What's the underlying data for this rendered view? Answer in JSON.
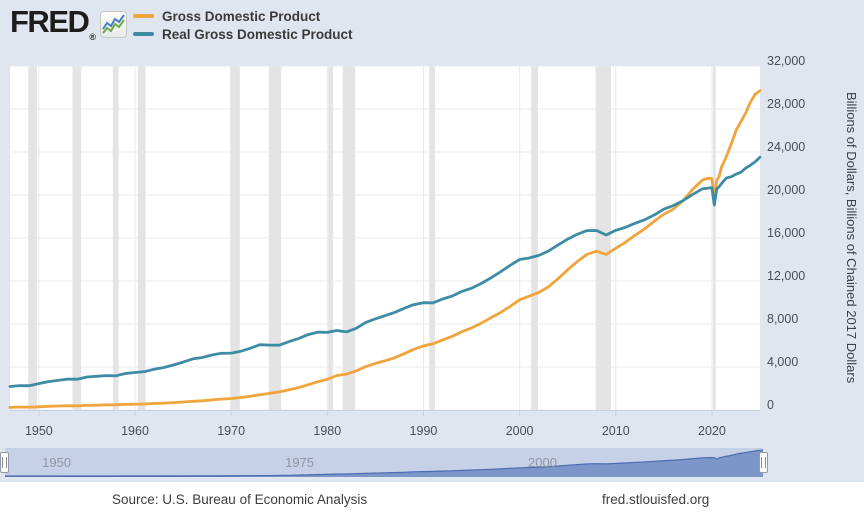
{
  "header": {
    "logo": "FRED",
    "registered": "®"
  },
  "footer": {
    "source": "Source: U.S. Bureau of Economic Analysis",
    "site": "fred.stlouisfed.org"
  },
  "colors": {
    "gdp_orange": "#F0A43C",
    "real_gdp_teal": "#3E8CA4",
    "page_bg": "#E0E6EF",
    "plot_bg": "#FFFFFF",
    "recession_band": "#E4E4E4",
    "gridline": "#EBEBEB",
    "axis_line": "#C9D2DE",
    "nav_track": "#C6D0E6",
    "nav_fill": "#7D96C9",
    "nav_line": "#4C6DB2"
  },
  "chart_data": {
    "type": "line",
    "title": "",
    "ylabel": "Billions of Dollars, Billions of Chained 2017 Dollars",
    "xlim": [
      1947,
      2025
    ],
    "ylim": [
      0,
      32000
    ],
    "x_ticks": [
      1950,
      1960,
      1970,
      1980,
      1990,
      2000,
      2010,
      2020
    ],
    "y_ticks": [
      0,
      4000,
      8000,
      12000,
      16000,
      20000,
      24000,
      28000,
      32000
    ],
    "y_tick_labels": [
      "0",
      "4,000",
      "8,000",
      "12,000",
      "16,000",
      "20,000",
      "24,000",
      "28,000",
      "32,000"
    ],
    "grid": true,
    "legend_position": "top-left",
    "recession_bands": [
      [
        1948.9,
        1949.8
      ],
      [
        1953.5,
        1954.4
      ],
      [
        1957.7,
        1958.3
      ],
      [
        1960.3,
        1961.1
      ],
      [
        1969.9,
        1970.9
      ],
      [
        1973.9,
        1975.2
      ],
      [
        1980.1,
        1980.6
      ],
      [
        1981.6,
        1982.9
      ],
      [
        1990.6,
        1991.2
      ],
      [
        2001.2,
        2001.9
      ],
      [
        2007.9,
        2009.5
      ],
      [
        2020.1,
        2020.4
      ]
    ],
    "x": [
      1947,
      1948,
      1949,
      1950,
      1951,
      1952,
      1953,
      1954,
      1955,
      1956,
      1957,
      1958,
      1959,
      1960,
      1961,
      1962,
      1963,
      1964,
      1965,
      1966,
      1967,
      1968,
      1969,
      1970,
      1971,
      1972,
      1973,
      1974,
      1975,
      1976,
      1977,
      1978,
      1979,
      1980,
      1981,
      1982,
      1983,
      1984,
      1985,
      1986,
      1987,
      1988,
      1989,
      1990,
      1991,
      1992,
      1993,
      1994,
      1995,
      1996,
      1997,
      1998,
      1999,
      2000,
      2001,
      2002,
      2003,
      2004,
      2005,
      2006,
      2007,
      2008,
      2009,
      2010,
      2011,
      2012,
      2013,
      2014,
      2015,
      2016,
      2017,
      2018,
      2019,
      2019.5,
      2020,
      2020.25,
      2020.5,
      2020.75,
      2021,
      2021.5,
      2022,
      2022.5,
      2023,
      2023.5,
      2024,
      2024.5,
      2025
    ],
    "series": [
      {
        "name": "Gross Domestic Product",
        "color": "#F0A43C",
        "values": [
          243,
          269,
          267,
          300,
          347,
          368,
          389,
          391,
          426,
          449,
          474,
          481,
          522,
          542,
          562,
          604,
          638,
          685,
          742,
          813,
          860,
          941,
          1018,
          1073,
          1165,
          1279,
          1425,
          1545,
          1685,
          1873,
          2082,
          2352,
          2627,
          2857,
          3207,
          3344,
          3634,
          4038,
          4339,
          4580,
          4855,
          5236,
          5642,
          5963,
          6158,
          6520,
          6859,
          7287,
          7640,
          8073,
          8578,
          9063,
          9631,
          10251,
          10582,
          10929,
          11456,
          12217,
          13039,
          13816,
          14474,
          14770,
          14478,
          15049,
          15600,
          16254,
          16843,
          17551,
          18206,
          18695,
          19477,
          20533,
          21381,
          21540,
          21539,
          19636,
          21362,
          21705,
          22600,
          23550,
          24740,
          25994,
          26813,
          27610,
          28624,
          29374,
          29700
        ]
      },
      {
        "name": "Real Gross Domestic Product",
        "color": "#3E8CA4",
        "values": [
          2183,
          2273,
          2259,
          2456,
          2642,
          2753,
          2878,
          2864,
          3068,
          3133,
          3200,
          3177,
          3398,
          3485,
          3574,
          3794,
          3958,
          4187,
          4458,
          4751,
          4881,
          5119,
          5279,
          5289,
          5462,
          5749,
          6070,
          6039,
          6026,
          6351,
          6644,
          7012,
          7233,
          7215,
          7399,
          7265,
          7596,
          8146,
          8481,
          8775,
          9080,
          9457,
          9802,
          9981,
          9970,
          10323,
          10608,
          11035,
          11334,
          11764,
          12292,
          12845,
          13452,
          14003,
          14139,
          14384,
          14789,
          15360,
          15900,
          16348,
          16687,
          16702,
          16275,
          16720,
          16982,
          17369,
          17693,
          18142,
          18680,
          19021,
          19477,
          20057,
          20576,
          20626,
          20693,
          19057,
          20548,
          20771,
          21058,
          21571,
          21698,
          21935,
          22112,
          22491,
          22760,
          23087,
          23526
        ]
      }
    ],
    "navigator": {
      "labels": [
        {
          "year": 1950,
          "text": "1950"
        },
        {
          "year": 1975,
          "text": "1975"
        },
        {
          "year": 2000,
          "text": "2000"
        }
      ]
    }
  }
}
